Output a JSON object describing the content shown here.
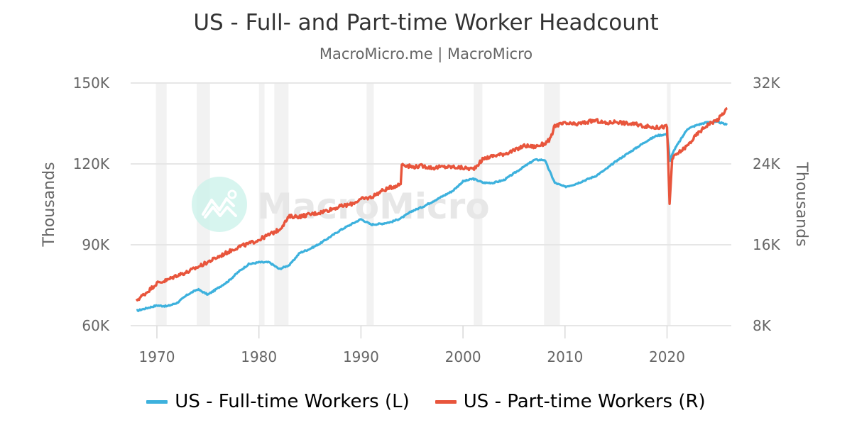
{
  "title": "US - Full- and Part-time Worker Headcount",
  "subtitle": "MacroMicro.me | MacroMicro",
  "watermark": "MacroMicro",
  "colors": {
    "full_time": "#3db1dd",
    "part_time": "#e8553c",
    "grid": "#e6e6e6",
    "recession": "#f2f2f2",
    "axis_text": "#666666"
  },
  "legend": [
    {
      "label": "US - Full-time Workers (L)",
      "color": "#3db1dd"
    },
    {
      "label": "US - Part-time Workers (R)",
      "color": "#e8553c"
    }
  ],
  "chart_data": {
    "type": "line",
    "title": "US - Full- and Part-time Worker Headcount",
    "subtitle": "MacroMicro.me | MacroMicro",
    "xlabel": "",
    "ylabel_left": "Thousands",
    "ylabel_right": "Thousands",
    "x_ticks": [
      "1970",
      "1980",
      "1990",
      "2000",
      "2010",
      "2020"
    ],
    "y_left_ticks": [
      "60K",
      "90K",
      "120K",
      "150K"
    ],
    "y_right_ticks": [
      "8K",
      "16K",
      "24K",
      "32K"
    ],
    "y_left_range": [
      60000,
      150000
    ],
    "y_right_range": [
      8000,
      32000
    ],
    "xlim": [
      1967.4,
      2026.0
    ],
    "grid": true,
    "legend_position": "bottom",
    "recession_bands": [
      [
        1969.9,
        1970.95
      ],
      [
        1973.9,
        1975.2
      ],
      [
        1980.0,
        1980.55
      ],
      [
        1981.5,
        1982.9
      ],
      [
        1990.55,
        1991.25
      ],
      [
        2001.05,
        2001.9
      ],
      [
        2007.95,
        2009.5
      ],
      [
        2020.0,
        2020.35
      ]
    ],
    "series": [
      {
        "name": "US - Full-time Workers (L)",
        "axis": "left",
        "color": "#3db1dd",
        "x": [
          1968,
          1969,
          1970,
          1971,
          1972,
          1973,
          1974,
          1975,
          1976,
          1977,
          1978,
          1979,
          1980,
          1981,
          1982,
          1983,
          1984,
          1985,
          1986,
          1987,
          1988,
          1989,
          1990,
          1991,
          1992,
          1993,
          1994,
          1995,
          1996,
          1997,
          1998,
          1999,
          2000,
          2001,
          2002,
          2003,
          2004,
          2005,
          2006,
          2007,
          2008,
          2009,
          2010,
          2011,
          2012,
          2013,
          2014,
          2015,
          2016,
          2017,
          2018,
          2019,
          2020,
          2020.3,
          2020.6,
          2021,
          2022,
          2023,
          2024,
          2025,
          2025.9
        ],
        "values": [
          65500,
          66500,
          67500,
          67200,
          68500,
          71500,
          73500,
          71500,
          74000,
          76500,
          80000,
          82800,
          83500,
          83500,
          81000,
          82500,
          87000,
          88500,
          90500,
          93000,
          95500,
          97500,
          99500,
          97500,
          97800,
          98500,
          100000,
          102500,
          104000,
          106000,
          108000,
          110000,
          113500,
          114500,
          113000,
          113000,
          114000,
          116500,
          119000,
          121500,
          121500,
          113000,
          111500,
          112500,
          114000,
          115500,
          118000,
          121000,
          123500,
          126000,
          128500,
          130500,
          131000,
          121000,
          124500,
          127000,
          133000,
          134500,
          135500,
          135500,
          134500
        ]
      },
      {
        "name": "US - Part-time Workers (R)",
        "axis": "right",
        "color": "#e8553c",
        "x": [
          1968,
          1969,
          1970,
          1971,
          1972,
          1973,
          1974,
          1975,
          1976,
          1977,
          1978,
          1979,
          1980,
          1981,
          1982,
          1983,
          1984,
          1985,
          1986,
          1987,
          1988,
          1989,
          1990,
          1991,
          1992,
          1993,
          1993.9,
          1994.0,
          1995,
          1996,
          1997,
          1998,
          1999,
          2000,
          2001,
          2002,
          2003,
          2004,
          2005,
          2006,
          2007,
          2008,
          2008.6,
          2009,
          2010,
          2011,
          2012,
          2013,
          2014,
          2015,
          2016,
          2017,
          2018,
          2019,
          2020,
          2020.25,
          2020.5,
          2021,
          2022,
          2023,
          2024,
          2025,
          2025.9
        ],
        "values": [
          10500,
          11300,
          12200,
          12500,
          13000,
          13300,
          13800,
          14300,
          14800,
          15300,
          15800,
          16100,
          16500,
          17000,
          17500,
          18800,
          18800,
          19000,
          19200,
          19500,
          19800,
          20000,
          20500,
          20700,
          21300,
          21700,
          22000,
          24000,
          23700,
          23800,
          23600,
          23700,
          23700,
          23600,
          23500,
          24500,
          24800,
          25000,
          25300,
          25800,
          25700,
          26000,
          26500,
          27800,
          28000,
          27900,
          28100,
          28300,
          28000,
          28200,
          28000,
          27900,
          27700,
          27600,
          27700,
          20000,
          24500,
          25000,
          25800,
          27000,
          27900,
          28400,
          29500
        ]
      }
    ]
  }
}
